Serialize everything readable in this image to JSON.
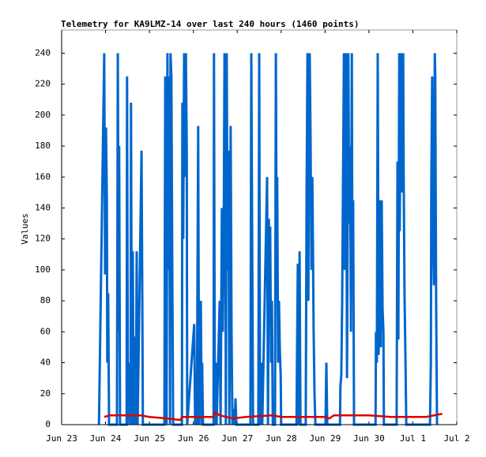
{
  "chart_data": {
    "type": "line",
    "title": "Telemetry for KA9LMZ-14 over last 240 hours (1460 points)",
    "y_label": "Values",
    "xlim": [
      0,
      9
    ],
    "xticks": [
      {
        "value": 0,
        "label": "Jun 23"
      },
      {
        "value": 1,
        "label": "Jun 24"
      },
      {
        "value": 2,
        "label": "Jun 25"
      },
      {
        "value": 3,
        "label": "Jun 26"
      },
      {
        "value": 4,
        "label": "Jun 27"
      },
      {
        "value": 5,
        "label": "Jun 28"
      },
      {
        "value": 6,
        "label": "Jun 29"
      },
      {
        "value": 7,
        "label": "Jun 30"
      },
      {
        "value": 8,
        "label": "Jul 1"
      },
      {
        "value": 9,
        "label": "Jul 2"
      }
    ],
    "ylim": [
      0,
      255
    ],
    "yticks": [
      0,
      20,
      40,
      60,
      80,
      100,
      120,
      140,
      160,
      180,
      200,
      220,
      240
    ],
    "series": [
      {
        "color": "#0066cc",
        "x": [
          0.85,
          0.97,
          0.99,
          1.01,
          1.03,
          1.04,
          1.06,
          1.08,
          1.26,
          1.28,
          1.3,
          1.31,
          1.33,
          1.48,
          1.49,
          1.51,
          1.53,
          1.57,
          1.58,
          1.6,
          1.62,
          1.64,
          1.67,
          1.69,
          1.71,
          1.73,
          1.82,
          1.84,
          1.85,
          2.34,
          2.36,
          2.38,
          2.39,
          2.41,
          2.43,
          2.45,
          2.47,
          2.48,
          2.5,
          2.52,
          2.54,
          2.74,
          2.75,
          2.77,
          2.79,
          2.81,
          2.83,
          2.85,
          2.86,
          3.02,
          3.04,
          3.06,
          3.08,
          3.11,
          3.13,
          3.17,
          3.19,
          3.2,
          3.22,
          3.46,
          3.47,
          3.49,
          3.51,
          3.53,
          3.6,
          3.62,
          3.65,
          3.67,
          3.69,
          3.71,
          3.73,
          3.74,
          3.76,
          3.78,
          3.8,
          3.82,
          3.85,
          3.87,
          3.89,
          3.92,
          3.94,
          3.96,
          3.98,
          4.3,
          4.32,
          4.34,
          4.36,
          4.48,
          4.5,
          4.52,
          4.55,
          4.57,
          4.68,
          4.7,
          4.72,
          4.73,
          4.75,
          4.77,
          4.79,
          4.81,
          4.86,
          4.88,
          4.9,
          4.91,
          4.93,
          4.95,
          4.97,
          4.99,
          5.0,
          5.35,
          5.36,
          5.38,
          5.4,
          5.42,
          5.44,
          5.56,
          5.58,
          5.6,
          5.62,
          5.63,
          5.65,
          5.67,
          5.69,
          5.71,
          5.72,
          5.74,
          5.76,
          5.78,
          6.01,
          6.03,
          6.05,
          6.34,
          6.35,
          6.37,
          6.39,
          6.41,
          6.43,
          6.44,
          6.46,
          6.48,
          6.5,
          6.52,
          6.53,
          6.55,
          6.57,
          6.59,
          6.61,
          6.62,
          6.64,
          6.66,
          7.15,
          7.16,
          7.18,
          7.2,
          7.22,
          7.24,
          7.25,
          7.27,
          7.29,
          7.31,
          7.33,
          7.34,
          7.63,
          7.65,
          7.67,
          7.69,
          7.7,
          7.72,
          7.74,
          7.76,
          7.78,
          7.79,
          7.81,
          7.83,
          7.85,
          8.39,
          8.41,
          8.42,
          8.44,
          8.46,
          8.48,
          8.5,
          8.51,
          8.53,
          8.55
        ],
        "values": [
          0,
          240,
          97,
          192,
          145,
          40,
          85,
          0,
          0,
          240,
          60,
          180,
          0,
          0,
          225,
          0,
          40,
          0,
          208,
          0,
          112,
          0,
          57,
          0,
          112,
          0,
          177,
          65,
          0,
          0,
          225,
          112,
          0,
          240,
          100,
          225,
          0,
          240,
          225,
          100,
          0,
          0,
          208,
          120,
          240,
          160,
          240,
          177,
          0,
          65,
          0,
          30,
          0,
          193,
          0,
          80,
          0,
          40,
          0,
          0,
          240,
          0,
          40,
          0,
          80,
          0,
          140,
          60,
          112,
          240,
          177,
          0,
          240,
          100,
          177,
          0,
          193,
          60,
          0,
          10,
          0,
          17,
          0,
          0,
          240,
          120,
          0,
          0,
          240,
          0,
          40,
          0,
          160,
          0,
          133,
          80,
          128,
          40,
          80,
          0,
          0,
          240,
          80,
          160,
          40,
          80,
          48,
          32,
          0,
          0,
          40,
          104,
          0,
          112,
          0,
          0,
          152,
          240,
          80,
          180,
          240,
          185,
          100,
          160,
          130,
          60,
          20,
          0,
          0,
          40,
          0,
          0,
          25,
          32,
          80,
          160,
          240,
          100,
          225,
          240,
          30,
          160,
          240,
          130,
          180,
          60,
          240,
          120,
          145,
          0,
          0,
          60,
          40,
          240,
          45,
          145,
          100,
          50,
          145,
          75,
          60,
          0,
          0,
          170,
          55,
          240,
          125,
          208,
          240,
          150,
          240,
          165,
          85,
          45,
          0,
          0,
          40,
          155,
          225,
          120,
          90,
          240,
          225,
          80,
          0
        ]
      },
      {
        "color": "#dd0000",
        "x": [
          0.97,
          1.1,
          1.8,
          2.0,
          2.4,
          2.7,
          2.75,
          3.46,
          3.5,
          3.6,
          3.9,
          4.2,
          4.8,
          5.0,
          6.0,
          6.1,
          6.2,
          7.0,
          7.5,
          8.3,
          8.67
        ],
        "values": [
          5,
          6,
          6,
          5,
          4,
          3,
          5,
          5,
          8,
          6,
          4,
          5,
          6,
          5,
          5,
          4,
          6,
          6,
          5,
          5,
          7
        ]
      }
    ]
  }
}
